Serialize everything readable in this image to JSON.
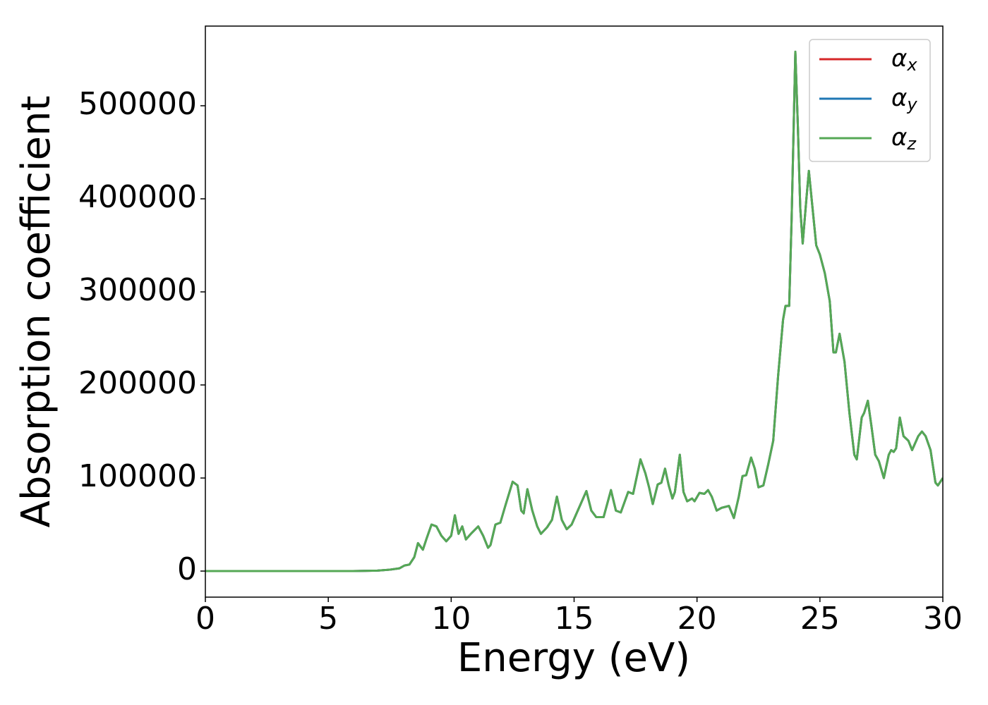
{
  "chart_data": {
    "type": "line",
    "xlabel": "Energy (eV)",
    "ylabel": "Absorption coefficient",
    "xlim": [
      0,
      30
    ],
    "xticks": [
      0,
      5,
      10,
      15,
      20,
      25,
      30
    ],
    "ylim": [
      -28000,
      585600
    ],
    "yticks": [
      0,
      100000,
      200000,
      300000,
      400000,
      500000
    ],
    "legend": "upper right",
    "x": [
      0,
      6,
      7,
      7.5,
      7.9,
      8.1,
      8.3,
      8.5,
      8.65,
      8.85,
      9.0,
      9.2,
      9.4,
      9.6,
      9.8,
      10.0,
      10.15,
      10.3,
      10.45,
      10.6,
      10.8,
      11.1,
      11.3,
      11.5,
      11.6,
      11.8,
      12.0,
      12.2,
      12.5,
      12.7,
      12.85,
      12.95,
      13.1,
      13.3,
      13.5,
      13.65,
      13.9,
      14.1,
      14.3,
      14.5,
      14.7,
      14.9,
      15.2,
      15.5,
      15.7,
      15.9,
      16.2,
      16.5,
      16.7,
      16.9,
      17.2,
      17.4,
      17.7,
      17.9,
      18.05,
      18.2,
      18.4,
      18.55,
      18.7,
      18.85,
      19.0,
      19.1,
      19.3,
      19.45,
      19.6,
      19.8,
      19.9,
      20.1,
      20.3,
      20.45,
      20.6,
      20.8,
      21.0,
      21.3,
      21.5,
      21.7,
      21.85,
      22.0,
      22.2,
      22.35,
      22.5,
      22.7,
      22.9,
      23.1,
      23.3,
      23.5,
      23.6,
      23.75,
      23.85,
      24.0,
      24.1,
      24.2,
      24.3,
      24.45,
      24.55,
      24.7,
      24.85,
      25.0,
      25.2,
      25.4,
      25.55,
      25.65,
      25.8,
      26.0,
      26.2,
      26.4,
      26.5,
      26.7,
      26.8,
      26.95,
      27.1,
      27.25,
      27.4,
      27.6,
      27.8,
      27.9,
      28.0,
      28.1,
      28.25,
      28.4,
      28.6,
      28.75,
      29.0,
      29.15,
      29.3,
      29.5,
      29.7,
      29.8,
      30.0
    ],
    "series": [
      {
        "name": "αx",
        "color": "#d62728",
        "values": [
          0,
          0,
          500,
          1500,
          3000,
          6000,
          7000,
          15000,
          30000,
          23000,
          35000,
          50000,
          48000,
          38000,
          32000,
          38000,
          60000,
          40000,
          48000,
          34000,
          40000,
          48000,
          38000,
          25000,
          28000,
          50000,
          52000,
          70000,
          96000,
          92000,
          65000,
          62000,
          88000,
          65000,
          48000,
          40000,
          47000,
          55000,
          80000,
          55000,
          45000,
          50000,
          68000,
          86000,
          65000,
          58000,
          58000,
          87000,
          65000,
          63000,
          85000,
          83000,
          120000,
          105000,
          90000,
          72000,
          93000,
          95000,
          110000,
          92000,
          78000,
          85000,
          125000,
          85000,
          75000,
          78000,
          75000,
          84000,
          83000,
          87000,
          80000,
          65000,
          68000,
          70000,
          57000,
          80000,
          102000,
          103000,
          122000,
          110000,
          90000,
          92000,
          115000,
          140000,
          210000,
          270000,
          285000,
          285000,
          380000,
          558000,
          480000,
          390000,
          352000,
          400000,
          430000,
          390000,
          350000,
          340000,
          320000,
          290000,
          235000,
          235000,
          255000,
          225000,
          170000,
          125000,
          120000,
          165000,
          170000,
          183000,
          155000,
          125000,
          118000,
          100000,
          125000,
          130000,
          128000,
          132000,
          165000,
          145000,
          140000,
          130000,
          145000,
          150000,
          145000,
          130000,
          95000,
          92000,
          100000
        ]
      },
      {
        "name": "αy",
        "color": "#1f77b4",
        "values": [
          0,
          0,
          500,
          1500,
          3000,
          6000,
          7000,
          15000,
          30000,
          23000,
          35000,
          50000,
          48000,
          38000,
          32000,
          38000,
          60000,
          40000,
          48000,
          34000,
          40000,
          48000,
          38000,
          25000,
          28000,
          50000,
          52000,
          70000,
          96000,
          92000,
          65000,
          62000,
          88000,
          65000,
          48000,
          40000,
          47000,
          55000,
          80000,
          55000,
          45000,
          50000,
          68000,
          86000,
          65000,
          58000,
          58000,
          87000,
          65000,
          63000,
          85000,
          83000,
          120000,
          105000,
          90000,
          72000,
          93000,
          95000,
          110000,
          92000,
          78000,
          85000,
          125000,
          85000,
          75000,
          78000,
          75000,
          84000,
          83000,
          87000,
          80000,
          65000,
          68000,
          70000,
          57000,
          80000,
          102000,
          103000,
          122000,
          110000,
          90000,
          92000,
          115000,
          140000,
          210000,
          270000,
          285000,
          285000,
          380000,
          558000,
          480000,
          390000,
          352000,
          400000,
          430000,
          390000,
          350000,
          340000,
          320000,
          290000,
          235000,
          235000,
          255000,
          225000,
          170000,
          125000,
          120000,
          165000,
          170000,
          183000,
          155000,
          125000,
          118000,
          100000,
          125000,
          130000,
          128000,
          132000,
          165000,
          145000,
          140000,
          130000,
          145000,
          150000,
          145000,
          130000,
          95000,
          92000,
          100000
        ]
      },
      {
        "name": "αz",
        "color": "#55a855",
        "values": [
          0,
          0,
          500,
          1500,
          3000,
          6000,
          7000,
          15000,
          30000,
          23000,
          35000,
          50000,
          48000,
          38000,
          32000,
          38000,
          60000,
          40000,
          48000,
          34000,
          40000,
          48000,
          38000,
          25000,
          28000,
          50000,
          52000,
          70000,
          96000,
          92000,
          65000,
          62000,
          88000,
          65000,
          48000,
          40000,
          47000,
          55000,
          80000,
          55000,
          45000,
          50000,
          68000,
          86000,
          65000,
          58000,
          58000,
          87000,
          65000,
          63000,
          85000,
          83000,
          120000,
          105000,
          90000,
          72000,
          93000,
          95000,
          110000,
          92000,
          78000,
          85000,
          125000,
          85000,
          75000,
          78000,
          75000,
          84000,
          83000,
          87000,
          80000,
          65000,
          68000,
          70000,
          57000,
          80000,
          102000,
          103000,
          122000,
          110000,
          90000,
          92000,
          115000,
          140000,
          210000,
          270000,
          285000,
          285000,
          380000,
          558000,
          480000,
          390000,
          352000,
          400000,
          430000,
          390000,
          350000,
          340000,
          320000,
          290000,
          235000,
          235000,
          255000,
          225000,
          170000,
          125000,
          120000,
          165000,
          170000,
          183000,
          155000,
          125000,
          118000,
          100000,
          125000,
          130000,
          128000,
          132000,
          165000,
          145000,
          140000,
          130000,
          145000,
          150000,
          145000,
          130000,
          95000,
          92000,
          100000
        ]
      }
    ]
  }
}
